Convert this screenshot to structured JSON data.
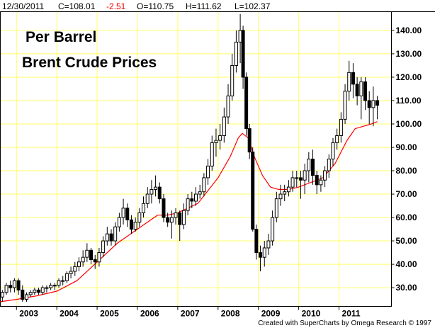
{
  "header": {
    "date": "12/30/2011",
    "close": "C=108.01",
    "change": "-2.51",
    "open": "O=110.75",
    "high": "H=111.62",
    "low": "L=102.37"
  },
  "colors": {
    "grid": "#ffff66",
    "border": "#000000",
    "ma_line": "#ff0000",
    "change_negative": "#ff0000",
    "candle": "#000000"
  },
  "chart_data": {
    "type": "candlestick",
    "title_lines": [
      "Per Barrel",
      "Brent Crude Prices"
    ],
    "xlabel": "",
    "ylabel": "",
    "ylim": [
      22,
      148
    ],
    "y_ticks": [
      "30.00",
      "40.00",
      "50.00",
      "60.00",
      "70.00",
      "80.00",
      "90.00",
      "100.00",
      "110.00",
      "120.00",
      "130.00",
      "140.00"
    ],
    "x_ticks": [
      "2003",
      "2004",
      "2005",
      "2006",
      "2007",
      "2008",
      "2009",
      "2010",
      "2011"
    ],
    "x_range_years": [
      2002.6,
      2012.3
    ],
    "grid": true,
    "credit": "Created with SuperCharts by Omega Research © 1997",
    "ma_series": {
      "name": "",
      "x": [
        2002.6,
        2003.0,
        2003.5,
        2004.0,
        2004.5,
        2005.0,
        2005.5,
        2006.0,
        2006.5,
        2006.75,
        2007.0,
        2007.5,
        2008.0,
        2008.3,
        2008.5,
        2008.6,
        2008.75,
        2008.9,
        2009.1,
        2009.3,
        2009.5,
        2009.75,
        2010.0,
        2010.3,
        2010.6,
        2010.9,
        2011.2,
        2011.4,
        2011.6,
        2011.8,
        2011.95
      ],
      "y": [
        24,
        25,
        26.5,
        28.5,
        33,
        41,
        49,
        55,
        61,
        61,
        62,
        66,
        77,
        86,
        94,
        96,
        94,
        86,
        78,
        73,
        72,
        72,
        73,
        75,
        77,
        83,
        93,
        98,
        99,
        100,
        101
      ]
    },
    "candles": {
      "x": [
        2002.65,
        2002.75,
        2002.85,
        2002.95,
        2003.05,
        2003.15,
        2003.25,
        2003.35,
        2003.45,
        2003.55,
        2003.65,
        2003.75,
        2003.85,
        2003.95,
        2004.05,
        2004.15,
        2004.25,
        2004.35,
        2004.45,
        2004.55,
        2004.65,
        2004.75,
        2004.85,
        2004.95,
        2005.05,
        2005.15,
        2005.25,
        2005.35,
        2005.45,
        2005.55,
        2005.65,
        2005.75,
        2005.85,
        2005.95,
        2006.05,
        2006.15,
        2006.25,
        2006.35,
        2006.45,
        2006.55,
        2006.65,
        2006.75,
        2006.85,
        2006.95,
        2007.05,
        2007.15,
        2007.25,
        2007.35,
        2007.45,
        2007.55,
        2007.65,
        2007.75,
        2007.85,
        2007.95,
        2008.05,
        2008.15,
        2008.25,
        2008.35,
        2008.45,
        2008.55,
        2008.62,
        2008.7,
        2008.78,
        2008.86,
        2008.95,
        2009.05,
        2009.15,
        2009.25,
        2009.35,
        2009.45,
        2009.55,
        2009.65,
        2009.75,
        2009.85,
        2009.95,
        2010.05,
        2010.15,
        2010.25,
        2010.35,
        2010.45,
        2010.55,
        2010.65,
        2010.75,
        2010.85,
        2010.95,
        2011.05,
        2011.15,
        2011.25,
        2011.35,
        2011.45,
        2011.55,
        2011.65,
        2011.75,
        2011.85,
        2011.95
      ],
      "open": [
        26,
        28,
        31,
        30,
        33,
        29,
        25,
        27,
        28,
        29,
        28,
        30,
        30,
        31,
        31,
        33,
        33,
        36,
        37,
        39,
        41,
        43,
        46,
        42,
        41,
        45,
        50,
        53,
        50,
        56,
        60,
        64,
        59,
        55,
        58,
        62,
        66,
        70,
        72,
        73,
        68,
        60,
        58,
        60,
        62,
        57,
        63,
        68,
        67,
        70,
        71,
        77,
        82,
        92,
        93,
        95,
        103,
        112,
        125,
        135,
        140,
        120,
        98,
        88,
        55,
        45,
        43,
        47,
        50,
        60,
        68,
        70,
        71,
        73,
        77,
        77,
        76,
        80,
        85,
        78,
        74,
        76,
        80,
        85,
        92,
        95,
        102,
        114,
        122,
        117,
        112,
        118,
        110,
        107,
        110
      ],
      "close": [
        28,
        31,
        30,
        33,
        29,
        25,
        27,
        28,
        29,
        28,
        30,
        30,
        31,
        31,
        33,
        33,
        36,
        37,
        39,
        41,
        43,
        46,
        42,
        41,
        45,
        50,
        53,
        50,
        56,
        60,
        64,
        59,
        55,
        58,
        62,
        66,
        70,
        72,
        73,
        68,
        60,
        58,
        60,
        62,
        57,
        63,
        68,
        67,
        70,
        71,
        77,
        82,
        92,
        93,
        95,
        103,
        112,
        125,
        135,
        140,
        120,
        98,
        88,
        55,
        45,
        43,
        47,
        50,
        60,
        68,
        70,
        71,
        73,
        77,
        77,
        76,
        80,
        85,
        78,
        74,
        76,
        80,
        85,
        92,
        95,
        102,
        114,
        122,
        117,
        112,
        118,
        110,
        107,
        110,
        108
      ],
      "high": [
        29,
        32,
        33,
        34,
        34,
        31,
        28,
        29,
        30,
        30,
        31,
        31,
        32,
        32,
        34,
        35,
        37,
        39,
        41,
        43,
        46,
        49,
        47,
        44,
        47,
        52,
        56,
        55,
        58,
        62,
        68,
        66,
        61,
        60,
        64,
        69,
        73,
        76,
        78,
        75,
        70,
        62,
        63,
        64,
        63,
        66,
        70,
        71,
        73,
        74,
        79,
        85,
        95,
        98,
        100,
        107,
        117,
        130,
        140,
        147,
        142,
        122,
        100,
        90,
        57,
        48,
        50,
        53,
        63,
        71,
        74,
        74,
        76,
        80,
        80,
        80,
        83,
        88,
        89,
        80,
        78,
        82,
        87,
        94,
        98,
        105,
        117,
        127,
        126,
        120,
        120,
        120,
        114,
        116,
        112
      ],
      "low": [
        24,
        27,
        28,
        28,
        27,
        24,
        24,
        26,
        27,
        27,
        27,
        28,
        29,
        29,
        30,
        31,
        32,
        34,
        35,
        37,
        39,
        41,
        40,
        38,
        39,
        43,
        48,
        48,
        48,
        54,
        57,
        56,
        53,
        54,
        56,
        60,
        64,
        66,
        69,
        66,
        58,
        56,
        51,
        57,
        50,
        55,
        61,
        64,
        65,
        68,
        69,
        74,
        80,
        86,
        89,
        92,
        100,
        110,
        122,
        126,
        115,
        95,
        85,
        54,
        42,
        37,
        39,
        44,
        48,
        58,
        65,
        67,
        69,
        71,
        73,
        68,
        70,
        75,
        74,
        70,
        71,
        73,
        77,
        82,
        89,
        92,
        100,
        110,
        111,
        108,
        102,
        106,
        100,
        99,
        102
      ]
    }
  }
}
